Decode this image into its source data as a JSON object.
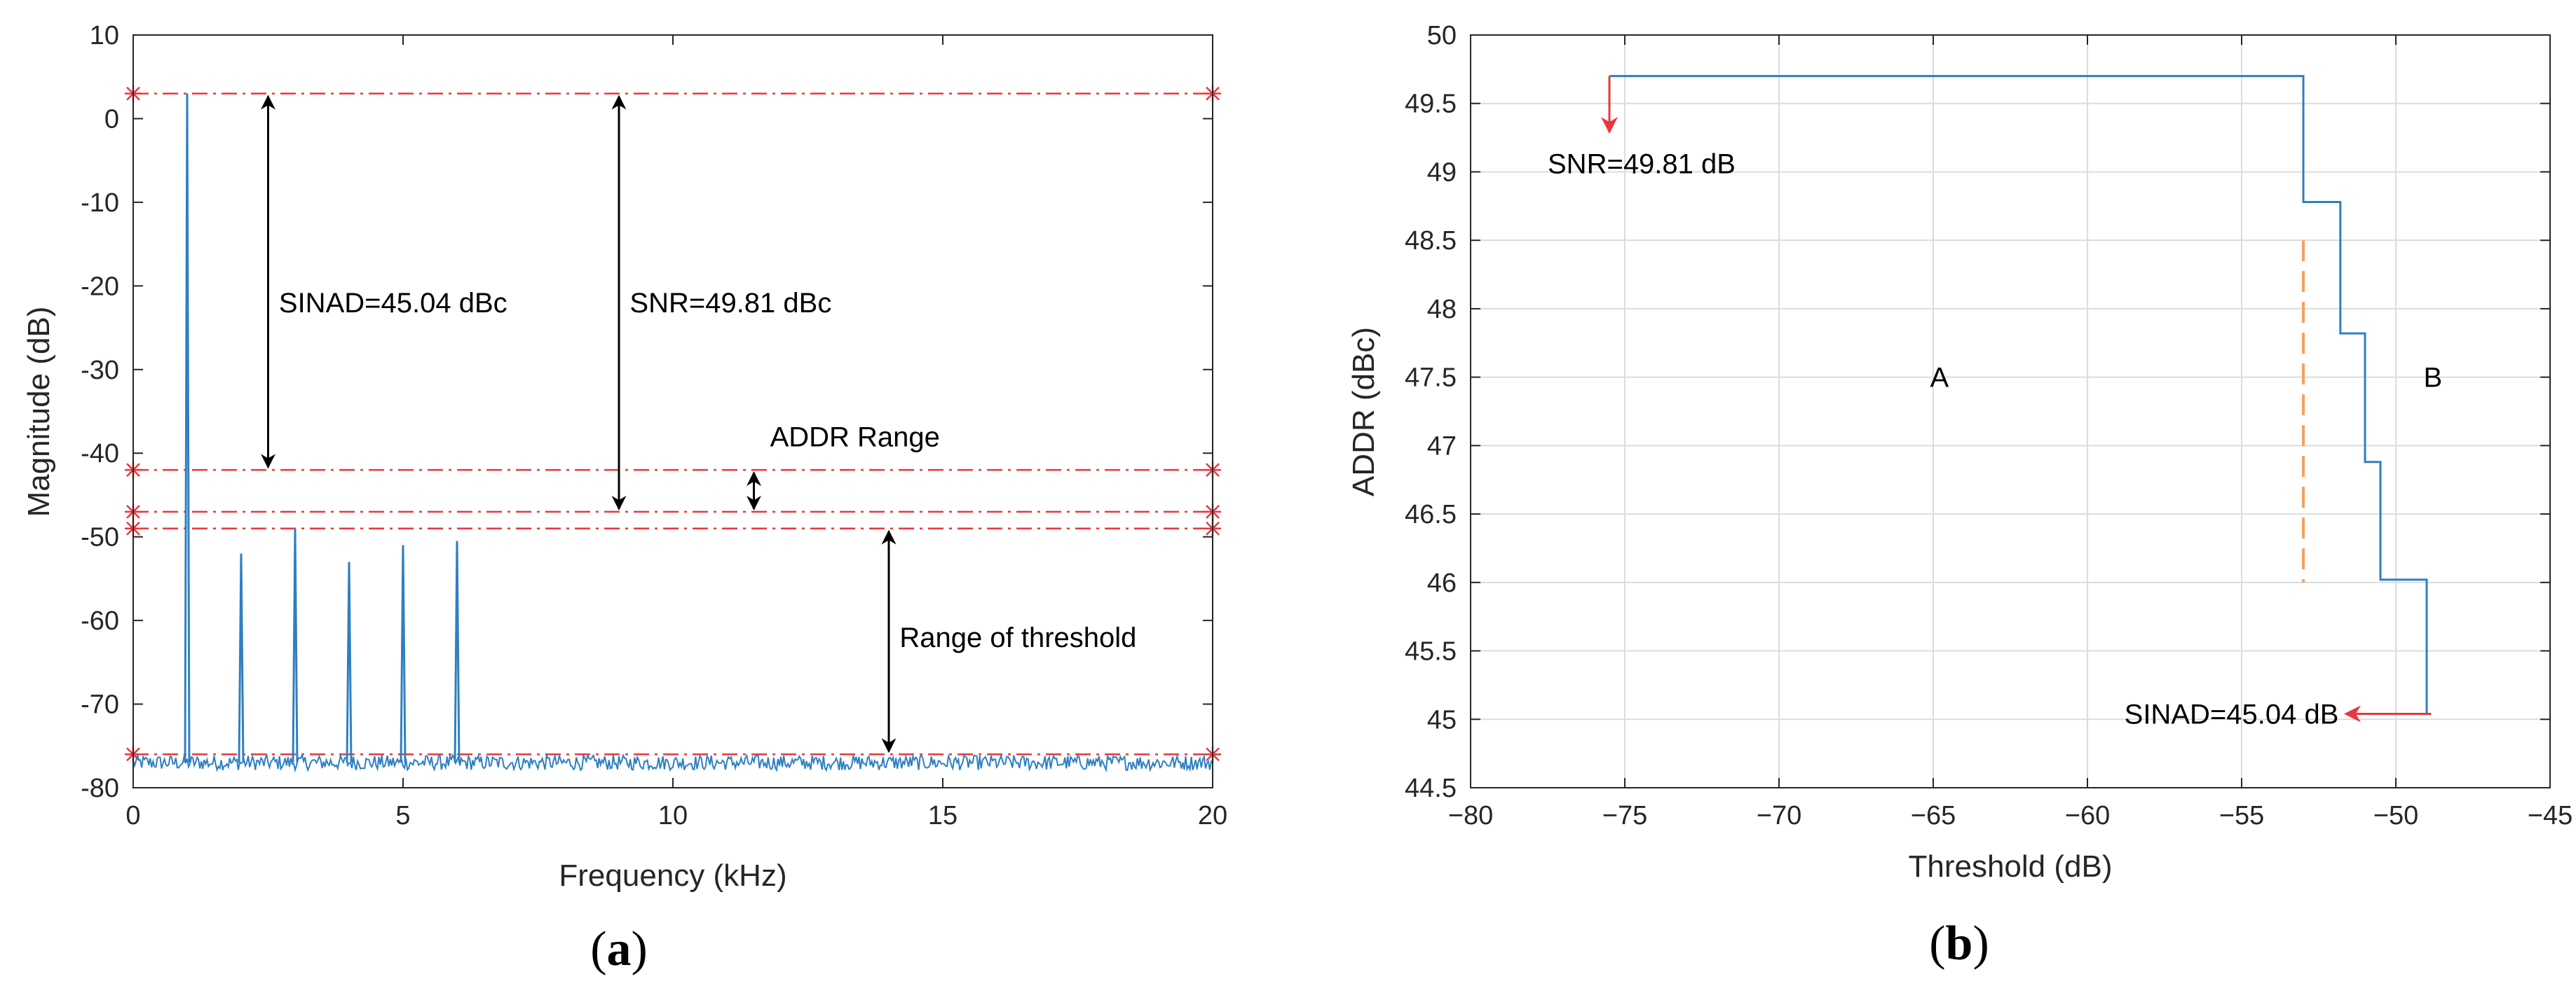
{
  "chart_data": [
    {
      "id": "a",
      "type": "line",
      "caption": {
        "open": "(",
        "letter": "a",
        "close": ")"
      },
      "xlabel": "Frequency (kHz)",
      "ylabel": "Magnitude (dB)",
      "xlim": [
        0,
        20
      ],
      "ylim": [
        -80,
        10
      ],
      "xticks": [
        0,
        5,
        10,
        15,
        20
      ],
      "xtick_labels": [
        "0",
        "5",
        "10",
        "15",
        "20"
      ],
      "yticks": [
        10,
        0,
        -10,
        -20,
        -30,
        -40,
        -50,
        -60,
        -70,
        -80
      ],
      "ytick_labels": [
        "10",
        "0",
        "-10",
        "-20",
        "-30",
        "-40",
        "-50",
        "-60",
        "-70",
        "-80"
      ],
      "grid": false,
      "noise_floor_db": -77,
      "peaks": [
        {
          "x": 1,
          "y": 3
        },
        {
          "x": 2,
          "y": -52
        },
        {
          "x": 3,
          "y": -49
        },
        {
          "x": 4,
          "y": -53
        },
        {
          "x": 5,
          "y": -51
        },
        {
          "x": 6,
          "y": -50.5
        }
      ],
      "reference_lines": [
        3,
        -42,
        -47,
        -49,
        -76
      ],
      "reference_color": "#e8383d",
      "series_color": "#2f7fc1",
      "arrows": [
        {
          "x": 2.5,
          "y1": 3,
          "y2": -42
        },
        {
          "x": 9,
          "y1": 3,
          "y2": -47
        },
        {
          "x": 14,
          "y1": -49,
          "y2": -76
        },
        {
          "x": 11.5,
          "y1": -42,
          "y2": -47
        }
      ],
      "annotations": [
        {
          "text": "SINAD=45.04 dBc",
          "x": 2.7,
          "y": -22
        },
        {
          "text": "SNR=49.81 dBc",
          "x": 9.2,
          "y": -22
        },
        {
          "text": "ADDR Range",
          "x": 11.8,
          "y": -38
        },
        {
          "text": "Range of threshold",
          "x": 14.2,
          "y": -62
        }
      ]
    },
    {
      "id": "b",
      "type": "line",
      "caption": {
        "open": "(",
        "letter": "b",
        "close": ")"
      },
      "xlabel": "Threshold (dB)",
      "ylabel": "ADDR (dBc)",
      "xlim": [
        -80,
        -45
      ],
      "ylim": [
        44.5,
        50
      ],
      "xticks": [
        -80,
        -75,
        -70,
        -65,
        -60,
        -55,
        -50,
        -45
      ],
      "xtick_labels": [
        "−80",
        "−75",
        "−70",
        "−65",
        "−60",
        "−55",
        "−50",
        "−45"
      ],
      "yticks": [
        50,
        49.5,
        49,
        48.5,
        48,
        47.5,
        47,
        46.5,
        46,
        45.5,
        45,
        44.5
      ],
      "ytick_labels": [
        "50",
        "49.5",
        "49",
        "48.5",
        "48",
        "47.5",
        "47",
        "46.5",
        "46",
        "45.5",
        "45",
        "44.5"
      ],
      "grid": true,
      "series_color": "#2f7fc1",
      "step_x": [
        -75.5,
        -53,
        -53,
        -51.8,
        -51.8,
        -51,
        -51,
        -50.5,
        -50.5,
        -49,
        -49,
        -48.9
      ],
      "step_y": [
        49.7,
        49.7,
        48.78,
        48.78,
        47.82,
        47.82,
        46.88,
        46.88,
        46.02,
        46.02,
        45.04,
        45.04
      ],
      "divider": {
        "x": -53,
        "y1": 48.5,
        "y2": 46,
        "color": "#f4a261"
      },
      "region_labels": [
        {
          "text": "A",
          "x": -64.8,
          "y": 47.5
        },
        {
          "text": "B",
          "x": -48.8,
          "y": 47.5
        }
      ],
      "annotations": [
        {
          "text": "SNR=49.81 dB",
          "x": -75.5,
          "y": 49.06
        },
        {
          "text": "SINAD=45.04 dB",
          "x": -55.1,
          "y": 45.04
        }
      ],
      "arrow_color": "#e8383d"
    }
  ]
}
